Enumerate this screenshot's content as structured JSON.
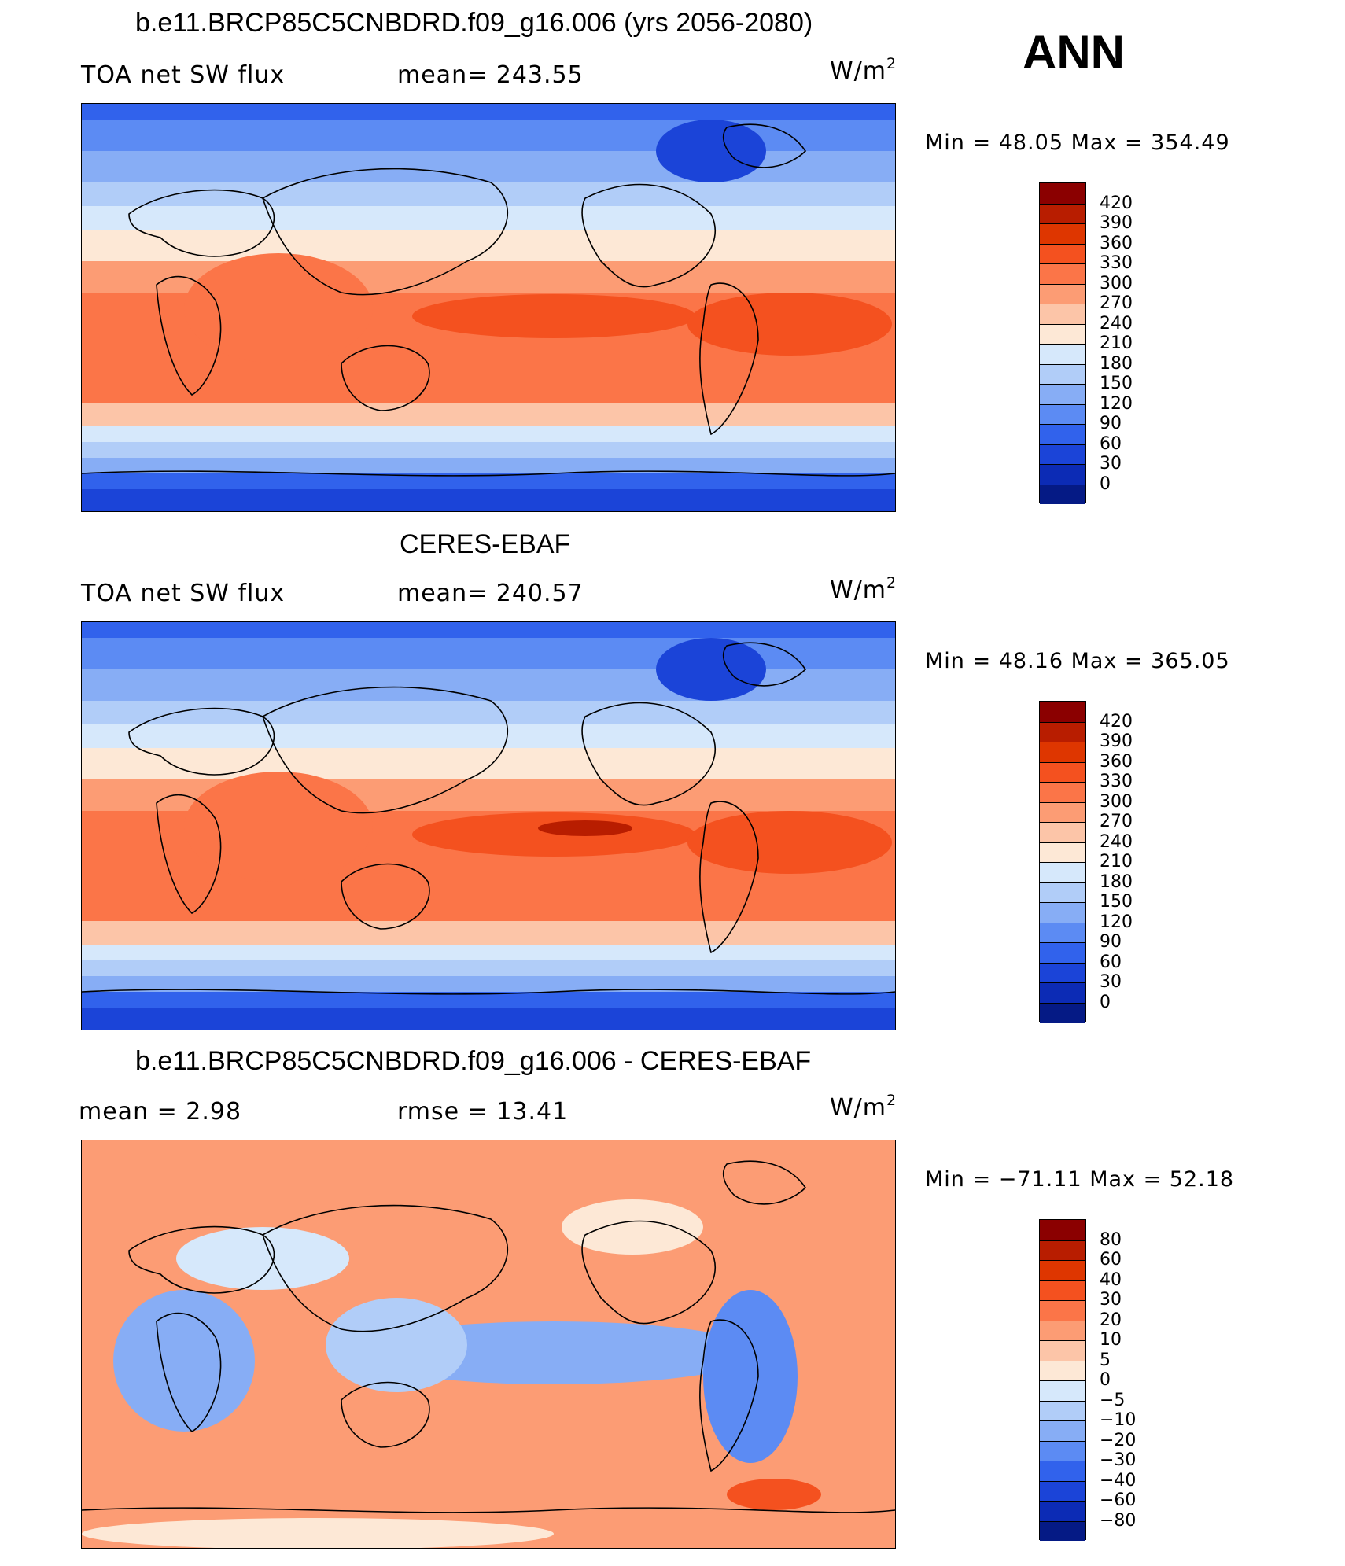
{
  "season": "ANN",
  "units_base": "W/m",
  "units_exp": "2",
  "panels": [
    {
      "title": "b.e11.BRCP85C5CNBDRD.f09_g16.006 (yrs 2056-2080)",
      "left_label": "TOA net SW flux",
      "mid_label": "mean= 243.55",
      "minmax": "Min =   48.05  Max  =  354.49",
      "colorbar_labels": [
        "420",
        "390",
        "360",
        "330",
        "300",
        "270",
        "240",
        "210",
        "180",
        "150",
        "120",
        "90",
        "60",
        "30",
        "0"
      ],
      "colorbar_colors": [
        "#8b0000",
        "#b81d00",
        "#de3600",
        "#f4511f",
        "#fb7548",
        "#fc9c74",
        "#fcc5a8",
        "#fde8d6",
        "#d6e8fb",
        "#b1cdf8",
        "#87adf5",
        "#5c8bf3",
        "#3162ec",
        "#1b44d8",
        "#0c2bb5",
        "#051a85"
      ],
      "ramp": "flux"
    },
    {
      "title": "CERES-EBAF",
      "left_label": "TOA net SW flux",
      "mid_label": "mean= 240.57",
      "minmax": "Min =   48.16  Max  =  365.05",
      "colorbar_labels": [
        "420",
        "390",
        "360",
        "330",
        "300",
        "270",
        "240",
        "210",
        "180",
        "150",
        "120",
        "90",
        "60",
        "30",
        "0"
      ],
      "colorbar_colors": [
        "#8b0000",
        "#b81d00",
        "#de3600",
        "#f4511f",
        "#fb7548",
        "#fc9c74",
        "#fcc5a8",
        "#fde8d6",
        "#d6e8fb",
        "#b1cdf8",
        "#87adf5",
        "#5c8bf3",
        "#3162ec",
        "#1b44d8",
        "#0c2bb5",
        "#051a85"
      ],
      "ramp": "flux"
    },
    {
      "title": "b.e11.BRCP85C5CNBDRD.f09_g16.006 - CERES-EBAF",
      "left_label": "mean =     2.98",
      "mid_label": "rmse  =    13.41",
      "minmax": "Min  =  −71.11  Max  =    52.18",
      "colorbar_labels": [
        "80",
        "60",
        "40",
        "30",
        "20",
        "10",
        "5",
        "0",
        "−5",
        "−10",
        "−20",
        "−30",
        "−40",
        "−60",
        "−80"
      ],
      "colorbar_colors": [
        "#8b0000",
        "#b81d00",
        "#de3600",
        "#f4511f",
        "#fb7548",
        "#fc9c74",
        "#fcc5a8",
        "#fde8d6",
        "#d6e8fb",
        "#b1cdf8",
        "#87adf5",
        "#5c8bf3",
        "#3162ec",
        "#1b44d8",
        "#0c2bb5",
        "#051a85"
      ],
      "ramp": "diff"
    }
  ]
}
